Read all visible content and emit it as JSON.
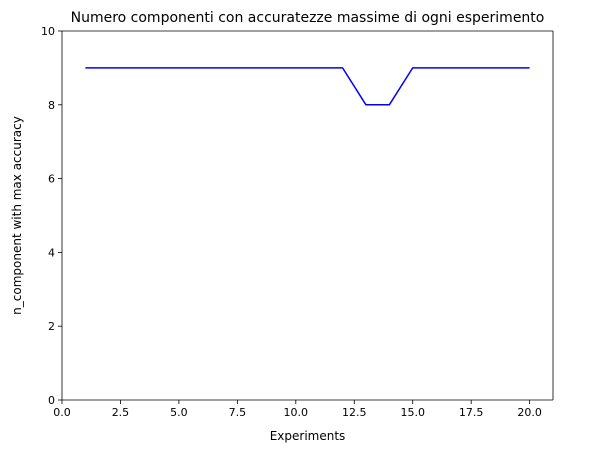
{
  "chart_data": {
    "type": "line",
    "title": "Numero componenti con accuratezze massime di ogni esperimento",
    "xlabel": "Experiments",
    "ylabel": "n_component with max accuracy",
    "xlim": [
      0,
      21
    ],
    "ylim": [
      0,
      10
    ],
    "x_ticks": [
      0,
      2.5,
      5,
      7.5,
      10,
      12.5,
      15,
      17.5,
      20
    ],
    "x_tick_labels": [
      "0.0",
      "2.5",
      "5.0",
      "7.5",
      "10.0",
      "12.5",
      "15.0",
      "17.5",
      "20.0"
    ],
    "y_ticks": [
      0,
      2,
      4,
      6,
      8,
      10
    ],
    "y_tick_labels": [
      "0",
      "2",
      "4",
      "6",
      "8",
      "10"
    ],
    "grid": false,
    "legend": "none",
    "series": [
      {
        "color": "#0000ff",
        "x": [
          1,
          2,
          3,
          4,
          5,
          6,
          7,
          8,
          9,
          10,
          11,
          12,
          13,
          14,
          15,
          16,
          17,
          18,
          19,
          20
        ],
        "y": [
          9,
          9,
          9,
          9,
          9,
          9,
          9,
          9,
          9,
          9,
          9,
          9,
          8,
          8,
          9,
          9,
          9,
          9,
          9,
          9
        ]
      }
    ]
  }
}
